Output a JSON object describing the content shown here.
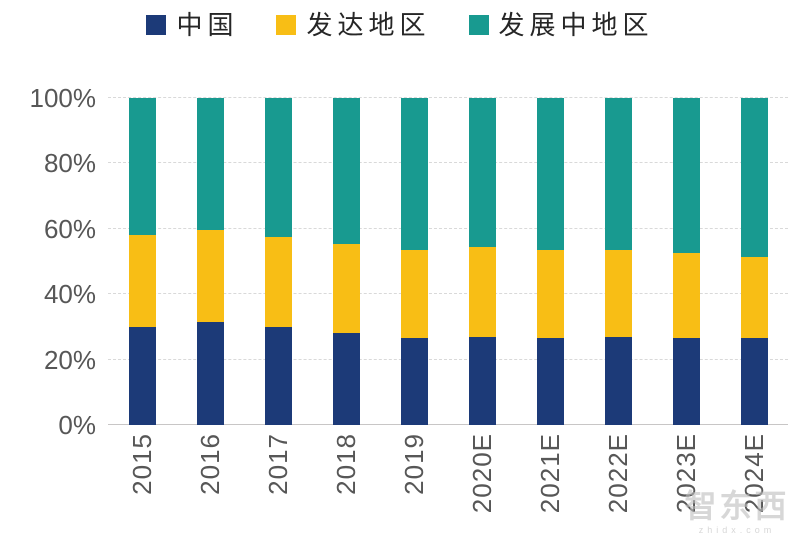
{
  "watermark": {
    "logo_text": "智东西",
    "site_text": "zhidx.com"
  },
  "chart_data": {
    "type": "bar",
    "stacked": true,
    "unit": "%",
    "title": "",
    "categories": [
      "2015",
      "2016",
      "2017",
      "2018",
      "2019",
      "2020E",
      "2021E",
      "2022E",
      "2023E",
      "2024E"
    ],
    "series": [
      {
        "name": "中国",
        "color": "#1C3A78",
        "values": [
          30,
          31.5,
          30,
          28,
          26.5,
          27,
          26.5,
          27,
          26.5,
          26.5
        ]
      },
      {
        "name": "发达地区",
        "color": "#F8BE15",
        "values": [
          28,
          28,
          27.5,
          27.5,
          27,
          27.5,
          27,
          26.5,
          26,
          25
        ]
      },
      {
        "name": "发展中地区",
        "color": "#189A90",
        "values": [
          42,
          40.5,
          42.5,
          44.5,
          46.5,
          45.5,
          46.5,
          46.5,
          47.5,
          48.5
        ]
      }
    ],
    "y_axis": {
      "ticks": [
        "0%",
        "20%",
        "40%",
        "60%",
        "80%",
        "100%"
      ],
      "min": 0,
      "max": 100,
      "grid": "dashed"
    },
    "x_axis": {
      "label_rotation": -90
    },
    "legend_position": "top",
    "colors": {
      "grid": "#d9d9d9",
      "axis_line": "#c8c6c6",
      "tick_text": "#575757",
      "legend_text": "#262626"
    }
  }
}
